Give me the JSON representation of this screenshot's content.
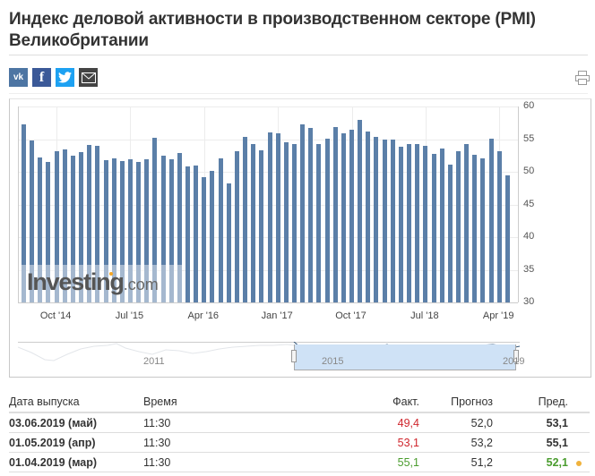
{
  "title": "Индекс деловой активности в производственном секторе (PMI) Великобритании",
  "share": {
    "vk": "vk",
    "facebook": "f",
    "twitter": "twitter",
    "email": "email"
  },
  "chart": {
    "watermark_main": "Investing",
    "watermark_com": ".com",
    "navigator_labels": [
      "2011",
      "2015",
      "2019"
    ]
  },
  "chart_data": {
    "type": "bar",
    "title": "Индекс деловой активности в производственном секторе (PMI) Великобритании",
    "xlabel": "",
    "ylabel": "",
    "ylim": [
      30,
      60
    ],
    "yticks": [
      30,
      35,
      40,
      45,
      50,
      55,
      60
    ],
    "xtick_labels": [
      "Oct '14",
      "Jul '15",
      "Apr '16",
      "Jan '17",
      "Oct '17",
      "Jul '18",
      "Apr '19"
    ],
    "categories": [
      "Jun 14",
      "Jul 14",
      "Aug 14",
      "Sep 14",
      "Oct 14",
      "Nov 14",
      "Dec 14",
      "Jan 15",
      "Feb 15",
      "Mar 15",
      "Apr 15",
      "May 15",
      "Jun 15",
      "Jul 15",
      "Aug 15",
      "Sep 15",
      "Oct 15",
      "Nov 15",
      "Dec 15",
      "Jan 16",
      "Feb 16",
      "Mar 16",
      "Apr 16",
      "May 16",
      "Jun 16",
      "Jul 16",
      "Aug 16",
      "Sep 16",
      "Oct 16",
      "Nov 16",
      "Dec 16",
      "Jan 17",
      "Feb 17",
      "Mar 17",
      "Apr 17",
      "May 17",
      "Jun 17",
      "Jul 17",
      "Aug 17",
      "Sep 17",
      "Oct 17",
      "Nov 17",
      "Dec 17",
      "Jan 18",
      "Feb 18",
      "Mar 18",
      "Apr 18",
      "May 18",
      "Jun 18",
      "Jul 18",
      "Aug 18",
      "Sep 18",
      "Oct 18",
      "Nov 18",
      "Dec 18",
      "Jan 19",
      "Feb 19",
      "Mar 19",
      "Apr 19",
      "May 19"
    ],
    "values": [
      57.2,
      54.8,
      52.2,
      51.5,
      53.1,
      53.4,
      52.5,
      53.0,
      54.1,
      54.0,
      51.8,
      52.0,
      51.6,
      51.9,
      51.5,
      51.9,
      55.2,
      52.5,
      51.9,
      52.9,
      50.8,
      51.0,
      49.2,
      50.1,
      52.1,
      48.2,
      53.2,
      55.3,
      54.2,
      53.3,
      56.0,
      55.9,
      54.5,
      54.2,
      57.2,
      56.7,
      54.3,
      55.1,
      56.8,
      55.9,
      56.5,
      58.0,
      56.2,
      55.3,
      55.0,
      54.9,
      53.9,
      54.3,
      54.3,
      54.0,
      52.8,
      53.6,
      51.1,
      53.1,
      54.2,
      52.6,
      52.1,
      55.1,
      53.1,
      49.4
    ],
    "grid": true,
    "legend": "none"
  },
  "table": {
    "headers": [
      "Дата выпуска",
      "Время",
      "Факт.",
      "Прогноз",
      "Пред."
    ],
    "rows": [
      {
        "date": "03.06.2019 (май)",
        "time": "11:30",
        "actual": "49,4",
        "forecast": "52,0",
        "previous": "53,1",
        "actual_color": "red",
        "previous_color": "",
        "revised": false
      },
      {
        "date": "01.05.2019 (апр)",
        "time": "11:30",
        "actual": "53,1",
        "forecast": "53,2",
        "previous": "55,1",
        "actual_color": "red",
        "previous_color": "",
        "revised": false
      },
      {
        "date": "01.04.2019 (мар)",
        "time": "11:30",
        "actual": "55,1",
        "forecast": "51,2",
        "previous": "52,1",
        "actual_color": "green",
        "previous_color": "green",
        "revised": true
      }
    ]
  },
  "colors": {
    "bar": "#5b7fa8",
    "negative": "#d0262d",
    "positive": "#4a9c2e",
    "navigator_fill": "#cfe2f6",
    "revised_dot": "#f0b23c"
  }
}
